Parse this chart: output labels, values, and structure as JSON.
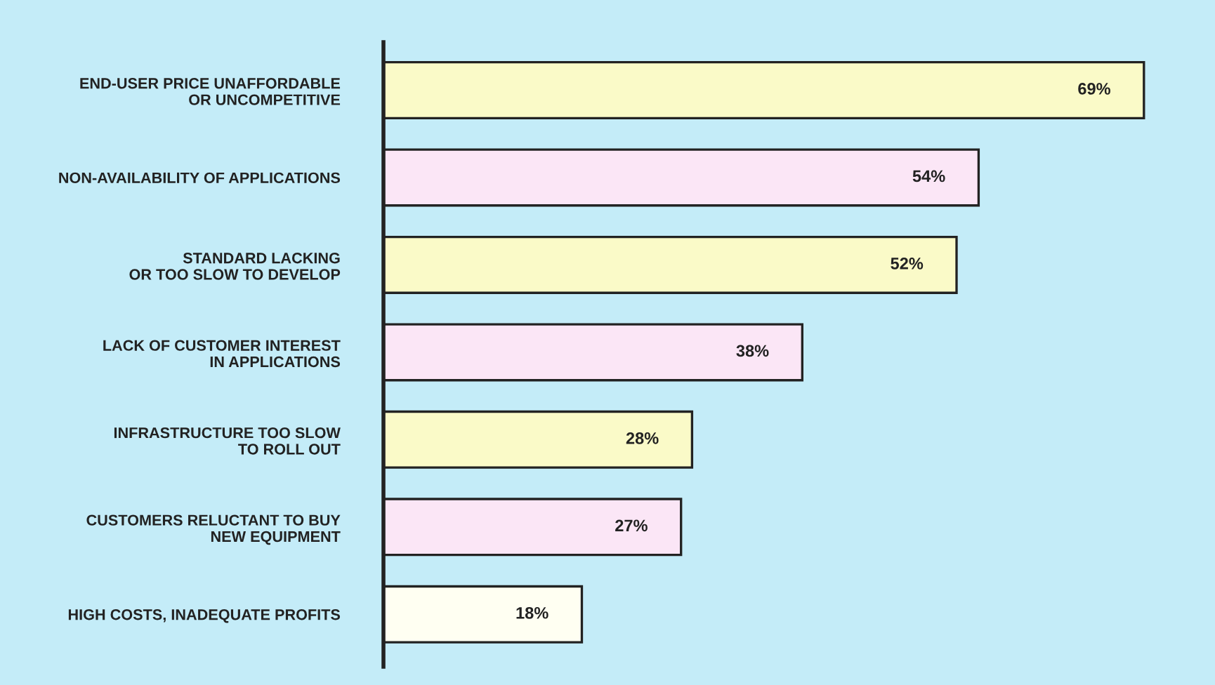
{
  "chart_data": {
    "type": "bar",
    "orientation": "horizontal",
    "value_labels": [
      "69%",
      "54%",
      "52%",
      "38%",
      "28%",
      "27%",
      "18%"
    ],
    "grid": false,
    "legend": false,
    "tick_labels": "y",
    "categories": [
      "END-USER PRICE UNAFFORDABLE\nOR UNCOMPETITIVE",
      "NON-AVAILABILITY OF APPLICATIONS",
      "STANDARD LACKING\nOR TOO SLOW TO DEVELOP",
      "LACK OF CUSTOMER INTEREST\nIN APPLICATIONS",
      "INFRASTRUCTURE TOO SLOW\nTO ROLL OUT",
      "CUSTOMERS RELUCTANT TO BUY\nNEW EQUIPMENT",
      "HIGH COSTS, INADEQUATE PROFITS"
    ],
    "values": [
      69,
      54,
      52,
      38,
      28,
      27,
      18
    ],
    "colors": [
      "#fafac8",
      "#fbe6f6",
      "#fafac8",
      "#fbe6f6",
      "#fafac8",
      "#fbe6f6",
      "#fffff2"
    ]
  }
}
